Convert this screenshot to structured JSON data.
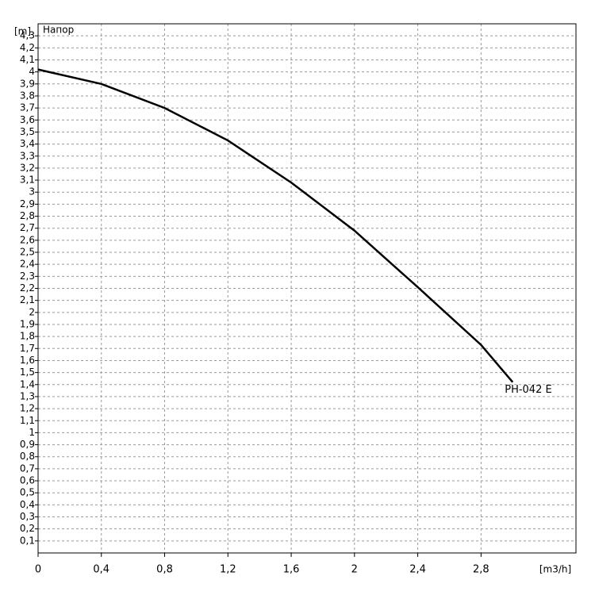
{
  "chart_data": {
    "type": "line",
    "title": "Напор",
    "y_label": "[m]",
    "x_label": "[m3/h]",
    "x": [
      0,
      0.4,
      0.8,
      1.2,
      1.6,
      2.0,
      2.4,
      2.8,
      3.0
    ],
    "series": [
      {
        "name": "PH-042 E",
        "color": "#000000",
        "values": [
          4.02,
          3.9,
          3.7,
          3.43,
          3.08,
          2.68,
          2.21,
          1.73,
          1.42
        ]
      }
    ],
    "xlim": [
      0,
      3.4
    ],
    "ylim": [
      0,
      4.4
    ],
    "xticks": [
      0,
      {
        "value": 0.4,
        "label": "0,4"
      },
      {
        "value": 0.8,
        "label": "0,8"
      },
      {
        "value": 1.2,
        "label": "1,2"
      },
      {
        "value": 1.6,
        "label": "1,6"
      },
      2,
      {
        "value": 2.4,
        "label": "2,4"
      },
      {
        "value": 2.8,
        "label": "2,8"
      }
    ],
    "yticks": [
      {
        "value": 0.1,
        "label": "0,1"
      },
      {
        "value": 0.2,
        "label": "0,2"
      },
      {
        "value": 0.3,
        "label": "0,3"
      },
      {
        "value": 0.4,
        "label": "0,4"
      },
      {
        "value": 0.5,
        "label": "0,5"
      },
      {
        "value": 0.6,
        "label": "0,6"
      },
      {
        "value": 0.7,
        "label": "0,7"
      },
      {
        "value": 0.8,
        "label": "0,8"
      },
      {
        "value": 0.9,
        "label": "0,9"
      },
      1,
      {
        "value": 1.1,
        "label": "1,1"
      },
      {
        "value": 1.2,
        "label": "1,2"
      },
      {
        "value": 1.3,
        "label": "1,3"
      },
      {
        "value": 1.4,
        "label": "1,4"
      },
      {
        "value": 1.5,
        "label": "1,5"
      },
      {
        "value": 1.6,
        "label": "1,6"
      },
      {
        "value": 1.7,
        "label": "1,7"
      },
      {
        "value": 1.8,
        "label": "1,8"
      },
      {
        "value": 1.9,
        "label": "1,9"
      },
      2,
      {
        "value": 2.1,
        "label": "2,1"
      },
      {
        "value": 2.2,
        "label": "2,2"
      },
      {
        "value": 2.3,
        "label": "2,3"
      },
      {
        "value": 2.4,
        "label": "2,4"
      },
      {
        "value": 2.5,
        "label": "2,5"
      },
      {
        "value": 2.6,
        "label": "2,6"
      },
      {
        "value": 2.7,
        "label": "2,7"
      },
      {
        "value": 2.8,
        "label": "2,8"
      },
      {
        "value": 2.9,
        "label": "2,9"
      },
      3,
      {
        "value": 3.1,
        "label": "3,1"
      },
      {
        "value": 3.2,
        "label": "3,2"
      },
      {
        "value": 3.3,
        "label": "3,3"
      },
      {
        "value": 3.4,
        "label": "3,4"
      },
      {
        "value": 3.5,
        "label": "3,5"
      },
      {
        "value": 3.6,
        "label": "3,6"
      },
      {
        "value": 3.7,
        "label": "3,7"
      },
      {
        "value": 3.8,
        "label": "3,8"
      },
      {
        "value": 3.9,
        "label": "3,9"
      },
      4,
      {
        "value": 4.1,
        "label": "4,1"
      },
      {
        "value": 4.2,
        "label": "4,2"
      },
      {
        "value": 4.3,
        "label": "4,3"
      }
    ],
    "grid": true
  }
}
